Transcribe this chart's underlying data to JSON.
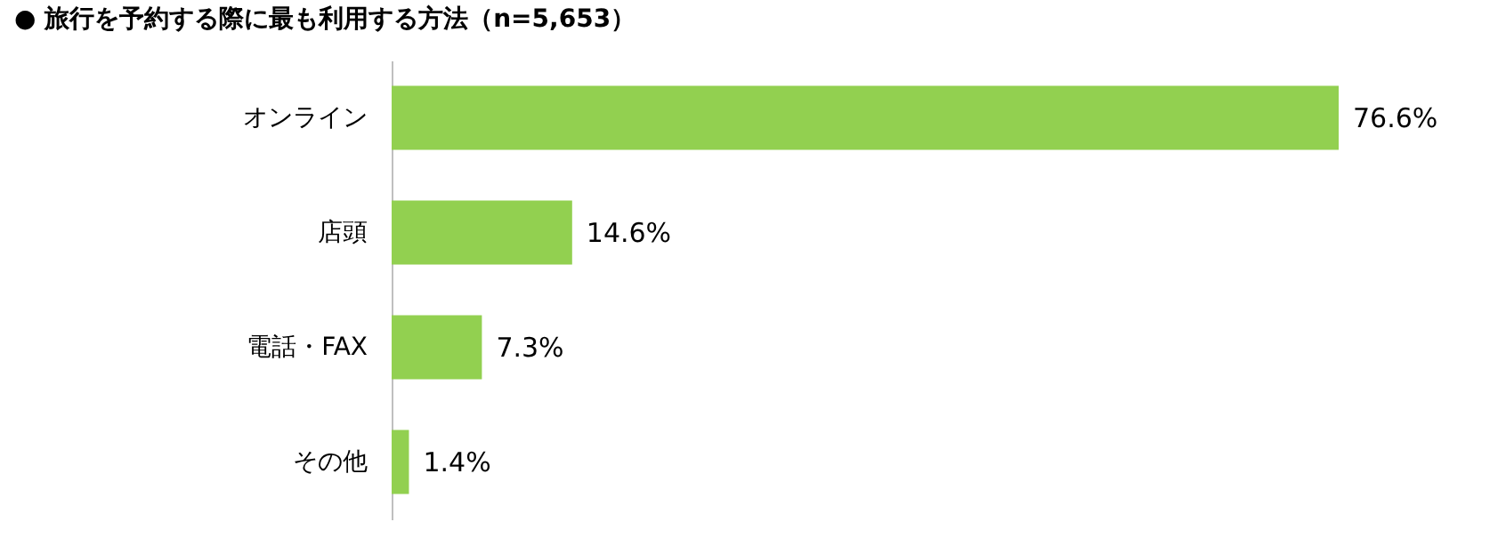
{
  "chart_data": {
    "type": "bar",
    "orientation": "horizontal",
    "title": "● 旅行を予約する際に最も利用する方法（n=5,653）",
    "categories": [
      "オンライン",
      "店頭",
      "電話・FAX",
      "その他"
    ],
    "values": [
      76.6,
      14.6,
      7.3,
      1.4
    ],
    "value_labels": [
      "76.6%",
      "14.6%",
      "7.3%",
      "1.4%"
    ],
    "color": "#92d050"
  }
}
